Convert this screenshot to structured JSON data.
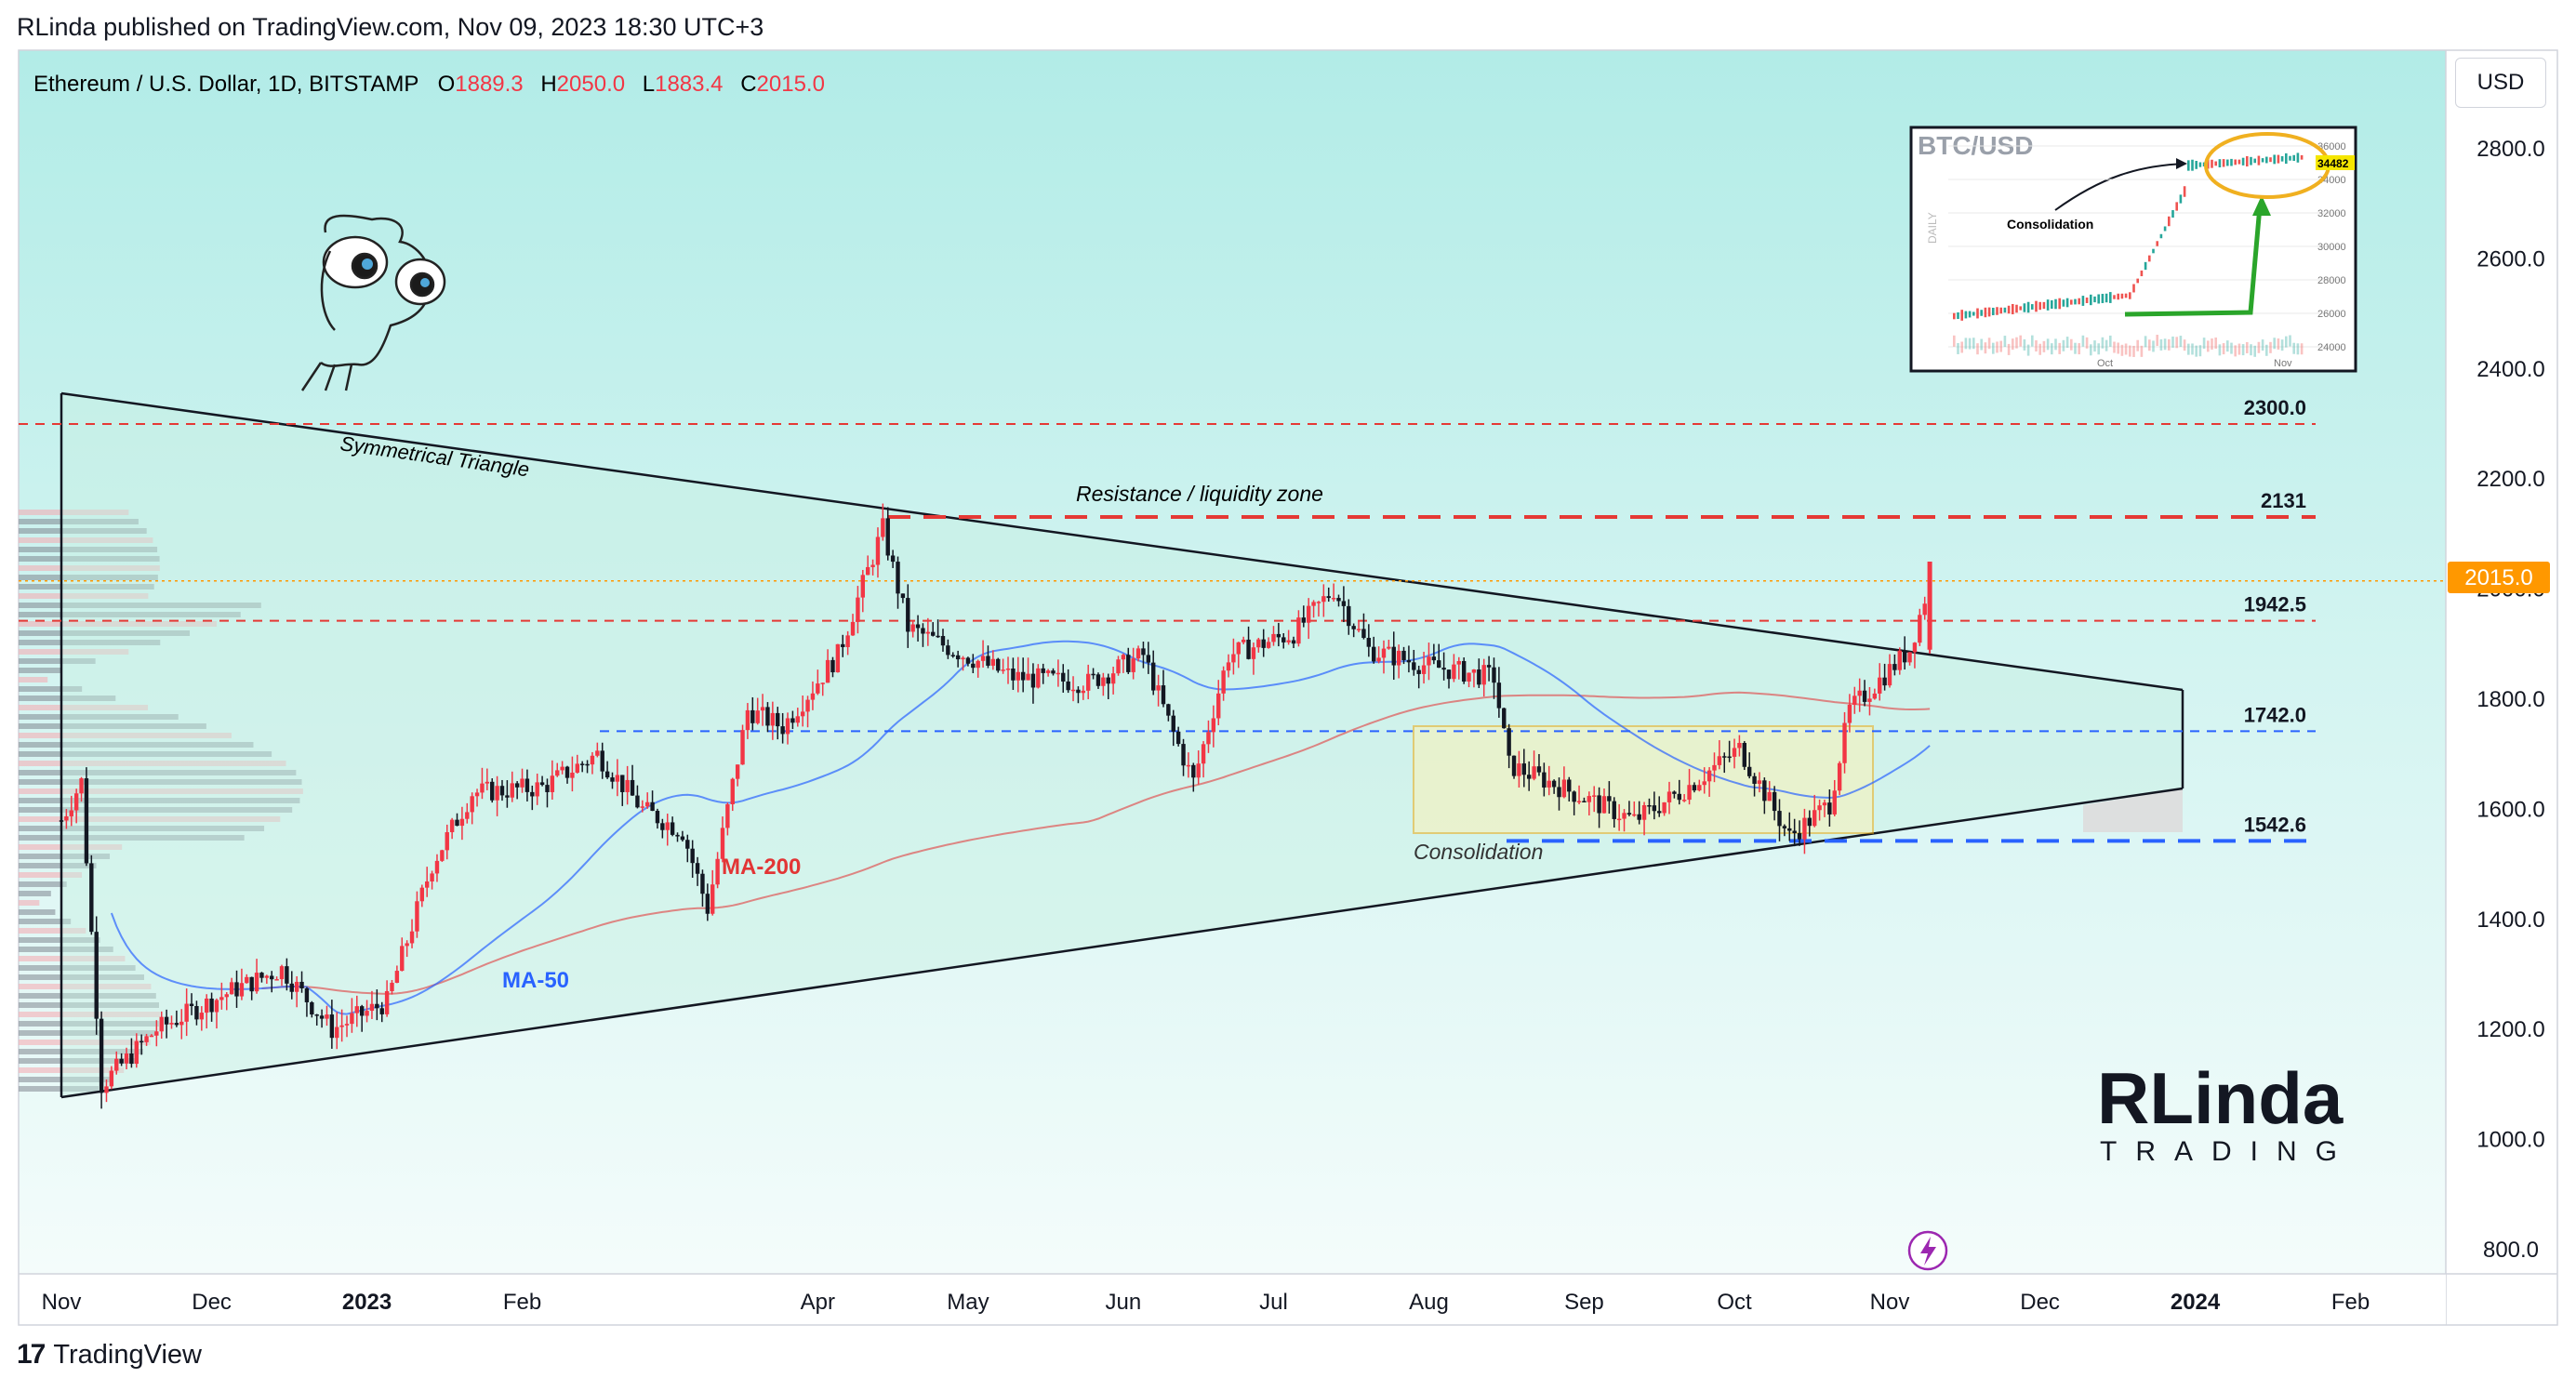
{
  "header": {
    "published": "RLinda published on TradingView.com, Nov 09, 2023 18:30 UTC+3",
    "symbol": "Ethereum / U.S. Dollar, 1D, BITSTAMP",
    "o_label": "O",
    "o_value": "1889.3",
    "h_label": "H",
    "h_value": "2050.0",
    "l_label": "L",
    "l_value": "1883.4",
    "c_label": "C",
    "c_value": "2015.0",
    "currency": "USD"
  },
  "footer": {
    "brand": "TradingView"
  },
  "watermark": {
    "line1": "RLinda",
    "line2": "TRADING"
  },
  "colors": {
    "bg_top": "#b2ece7",
    "bg_bottom": "#f4fcfb",
    "up": "#f23645",
    "down": "#131722",
    "ma50": "#2962ff",
    "ma200": "#e05555",
    "price_tag": "#ff9800"
  },
  "chart_data": {
    "type": "candlestick",
    "title": "Ethereum / U.S. Dollar, 1D, BITSTAMP",
    "ylim": [
      700,
      2900
    ],
    "y_ticks": [
      "2800.0",
      "2600.0",
      "2400.0",
      "2200.0",
      "2000.0",
      "1800.0",
      "1600.0",
      "1400.0",
      "1200.0",
      "1000.0",
      "800.0"
    ],
    "x_ticks": [
      "Nov",
      "Dec",
      "2023",
      "Feb",
      "Apr",
      "May",
      "Jun",
      "Jul",
      "Aug",
      "Sep",
      "Oct",
      "Nov",
      "Dec",
      "2024",
      "Feb"
    ],
    "last_price": "2015.0",
    "price_path": [
      [
        "2022-11-01",
        1580
      ],
      [
        "2022-11-05",
        1650
      ],
      [
        "2022-11-09",
        1100
      ],
      [
        "2022-11-20",
        1200
      ],
      [
        "2022-12-05",
        1270
      ],
      [
        "2022-12-15",
        1310
      ],
      [
        "2022-12-25",
        1200
      ],
      [
        "2023-01-05",
        1250
      ],
      [
        "2023-01-14",
        1500
      ],
      [
        "2023-01-22",
        1630
      ],
      [
        "2023-02-05",
        1640
      ],
      [
        "2023-02-16",
        1700
      ],
      [
        "2023-02-25",
        1600
      ],
      [
        "2023-03-05",
        1560
      ],
      [
        "2023-03-10",
        1420
      ],
      [
        "2023-03-18",
        1780
      ],
      [
        "2023-03-25",
        1750
      ],
      [
        "2023-04-05",
        1880
      ],
      [
        "2023-04-14",
        2110
      ],
      [
        "2023-04-19",
        1930
      ],
      [
        "2023-04-28",
        1890
      ],
      [
        "2023-05-10",
        1840
      ],
      [
        "2023-05-25",
        1830
      ],
      [
        "2023-06-05",
        1880
      ],
      [
        "2023-06-10",
        1760
      ],
      [
        "2023-06-15",
        1650
      ],
      [
        "2023-06-22",
        1880
      ],
      [
        "2023-07-05",
        1920
      ],
      [
        "2023-07-13",
        2000
      ],
      [
        "2023-07-20",
        1890
      ],
      [
        "2023-08-01",
        1860
      ],
      [
        "2023-08-14",
        1840
      ],
      [
        "2023-08-17",
        1680
      ],
      [
        "2023-08-25",
        1650
      ],
      [
        "2023-09-11",
        1580
      ],
      [
        "2023-09-20",
        1630
      ],
      [
        "2023-10-02",
        1710
      ],
      [
        "2023-10-12",
        1550
      ],
      [
        "2023-10-20",
        1610
      ],
      [
        "2023-10-24",
        1780
      ],
      [
        "2023-11-05",
        1890
      ],
      [
        "2023-11-09",
        2015
      ]
    ],
    "ma50_label": "MA-50",
    "ma200_label": "MA-200",
    "levels": [
      {
        "value": 2300,
        "label": "2300.0",
        "style": "dashed-red"
      },
      {
        "value": 2131,
        "label": "2131",
        "style": "dashed-red-bold"
      },
      {
        "value": 1942.5,
        "label": "1942.5",
        "style": "dashed-red"
      },
      {
        "value": 1742,
        "label": "1742.0",
        "style": "dashed-blue"
      },
      {
        "value": 1542.6,
        "label": "1542.6",
        "style": "dashed-blue-bold"
      }
    ],
    "annotations": {
      "triangle": "Symmetrical Triangle",
      "resistance": "Resistance / liquidity zone",
      "consolidation": "Consolidation"
    }
  },
  "inset": {
    "title": "BTC/USD",
    "side_label": "DAILY",
    "note": "Consolidation",
    "price_tag": "34482",
    "y_ticks": [
      "36000",
      "34000",
      "32000",
      "30000",
      "28000",
      "26000",
      "24000"
    ],
    "x_ticks": [
      "Oct",
      "Nov"
    ]
  }
}
